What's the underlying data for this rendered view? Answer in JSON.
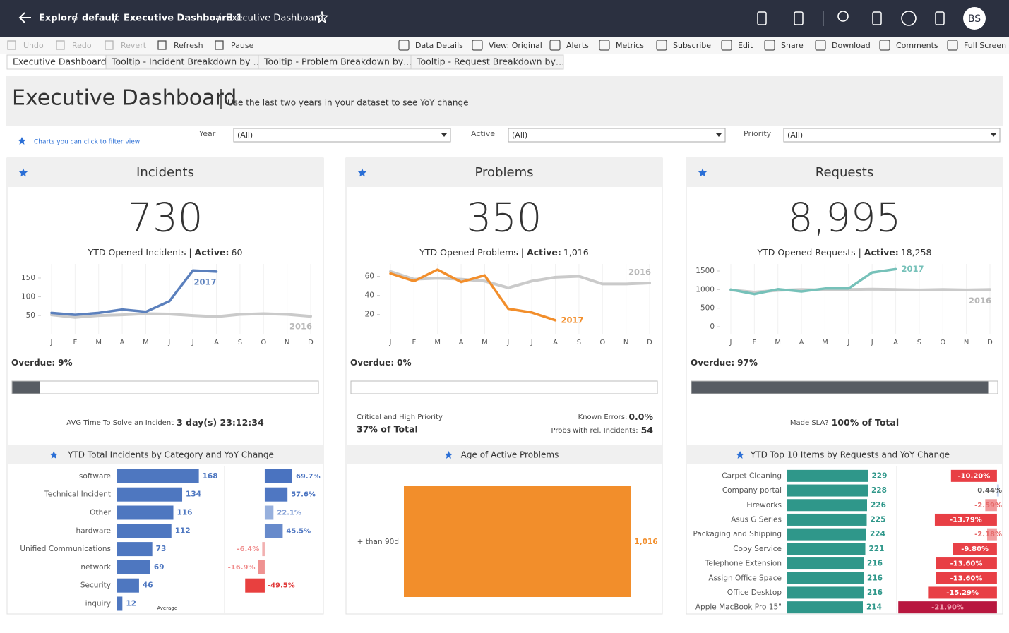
{
  "header": {
    "breadcrumb": [
      "Explore",
      "default",
      "Executive Dashboard 1",
      "Executive Dashboard"
    ],
    "avatar": "BS"
  },
  "toolbar": {
    "left": [
      "Undo",
      "Redo",
      "Revert",
      "Refresh",
      "Pause"
    ],
    "right": [
      "Data Details",
      "View: Original",
      "Alerts",
      "Metrics",
      "Subscribe",
      "Edit",
      "Share",
      "Download",
      "Comments",
      "Full Screen"
    ]
  },
  "tabs": [
    "Executive Dashboard",
    "Tooltip - Incident Breakdown by …",
    "Tooltip - Problem Breakdown by…",
    "Tooltip - Request Breakdown by…"
  ],
  "dashboard": {
    "title": "Executive Dashboard",
    "subtitle": "Use the last two years in your dataset to see YoY change",
    "hint": "Charts you can click to filter view",
    "filters": [
      {
        "label": "Year",
        "value": "(All)"
      },
      {
        "label": "Active",
        "value": "(All)"
      },
      {
        "label": "Priority",
        "value": "(All)"
      }
    ]
  },
  "panels": [
    {
      "title": "Incidents",
      "kpi": "730",
      "kpi_label": "YTD Opened Incidents |",
      "active_label": "Active:",
      "active_value": "60",
      "overdue": {
        "label": "Overdue:",
        "value": 9,
        "value_label": "9%"
      },
      "stats": [
        {
          "label": "AVG Time To Solve an Incident",
          "value": "3 day(s) 23:12:34"
        }
      ]
    },
    {
      "title": "Problems",
      "kpi": "350",
      "kpi_label": "YTD Opened Problems |",
      "active_label": "Active:",
      "active_value": "1,016",
      "overdue": {
        "label": "Overdue:",
        "value": 0,
        "value_label": "0%"
      },
      "stats": [
        {
          "label": "Critical and High Priority",
          "value": "37% of Total"
        },
        {
          "label": "Known Errors:",
          "value": "0.0%"
        },
        {
          "label": "Probs with rel. Incidents:",
          "value": "54"
        }
      ]
    },
    {
      "title": "Requests",
      "kpi": "8,995",
      "kpi_label": "YTD Opened Requests |",
      "active_label": "Active:",
      "active_value": "18,258",
      "overdue": {
        "label": "Overdue:",
        "value": 97,
        "value_label": "97%"
      },
      "stats": [
        {
          "label": "Made SLA?",
          "value": "100% of Total"
        }
      ]
    }
  ],
  "chart_data": [
    {
      "type": "line",
      "categories": [
        "J",
        "F",
        "M",
        "A",
        "M",
        "J",
        "J",
        "A",
        "S",
        "O",
        "N",
        "D"
      ],
      "series": [
        {
          "name": "2017",
          "color": "#5b80bd",
          "values": [
            57,
            52,
            57,
            66,
            60,
            88,
            170,
            167,
            null,
            null,
            null,
            null
          ]
        },
        {
          "name": "2016",
          "color": "#cacaca",
          "values": [
            52,
            45,
            50,
            52,
            55,
            54,
            50,
            47,
            53,
            55,
            53,
            48
          ]
        }
      ],
      "ylim": [
        7,
        180
      ],
      "yticks": [
        50,
        100,
        150
      ]
    },
    {
      "type": "line",
      "categories": [
        "J",
        "F",
        "M",
        "A",
        "M",
        "J",
        "J",
        "A",
        "S",
        "O",
        "N",
        "D"
      ],
      "series": [
        {
          "name": "2017",
          "color": "#f28e2b",
          "values": [
            63,
            55,
            67,
            54,
            61,
            26,
            22,
            14,
            null,
            null,
            null,
            null
          ]
        },
        {
          "name": "2016",
          "color": "#cacaca",
          "values": [
            65,
            57,
            58,
            57,
            55,
            48,
            55,
            59,
            60,
            52,
            52,
            53
          ]
        }
      ],
      "ylim": [
        2,
        70
      ],
      "yticks": [
        20,
        40,
        60
      ]
    },
    {
      "type": "line",
      "categories": [
        "J",
        "F",
        "M",
        "A",
        "M",
        "J",
        "J",
        "A",
        "S",
        "O",
        "N",
        "D"
      ],
      "series": [
        {
          "name": "2017",
          "color": "#76c1b9",
          "values": [
            1000,
            880,
            1010,
            950,
            1030,
            1030,
            1460,
            1550,
            null,
            null,
            null,
            null
          ]
        },
        {
          "name": "2016",
          "color": "#cacaca",
          "values": [
            990,
            930,
            980,
            1000,
            990,
            1000,
            1010,
            1000,
            990,
            1000,
            990,
            1000
          ]
        }
      ],
      "ylim": [
        -133,
        1614
      ],
      "yticks": [
        0,
        500,
        1000,
        1500
      ]
    },
    {
      "type": "bar",
      "title": "YTD Total Incidents by Category and YoY Change",
      "categories": [
        "software",
        "Technical Incident",
        "Other",
        "hardware",
        "Unified Communications",
        "network",
        "Security",
        "inquiry"
      ],
      "series": [
        {
          "color": "#4e77c0",
          "values": [
            168,
            134,
            116,
            112,
            73,
            69,
            46,
            12
          ],
          "xlim": [
            0,
            206
          ]
        },
        {
          "values": [
            69.7,
            57.6,
            22.1,
            45.5,
            -6.4,
            -16.9,
            -49.5,
            null
          ],
          "value_labels": [
            "69.7%",
            "57.6%",
            "22.1%",
            "45.5%",
            "-6.4%",
            "-16.9%",
            "-49.5%",
            null
          ],
          "xlim": [
            -116,
            143
          ]
        }
      ],
      "reference_label": "Average"
    },
    {
      "type": "bar",
      "title": "Age of Active Problems",
      "categories": [
        "+ than 90d"
      ],
      "series": [
        {
          "color": "#f28e2b",
          "values": [
            1016
          ],
          "value_labels": [
            "1,016"
          ],
          "xlim": [
            0,
            1100
          ]
        }
      ]
    },
    {
      "type": "bar",
      "title": "YTD Top 10 Items by Requests and YoY Change",
      "categories": [
        "Carpet Cleaning",
        "Company portal",
        "Fireworks",
        "Asus G Series",
        "Packaging and Shipping",
        "Copy Service",
        "Telephone Extension",
        "Assign Office Space",
        "Office Desktop",
        "Apple MacBook Pro 15\""
      ],
      "series": [
        {
          "color": "#2f978a",
          "values": [
            229,
            228,
            226,
            225,
            224,
            221,
            216,
            216,
            216,
            214
          ],
          "xlim": [
            0,
            290
          ]
        },
        {
          "values": [
            -10.2,
            0.44,
            -2.59,
            -13.79,
            -2.18,
            -9.8,
            -13.6,
            -13.6,
            -15.29,
            -21.9
          ],
          "value_labels": [
            "-10.20%",
            "0.44%",
            "-2.59%",
            "-13.79%",
            "-2.18%",
            "-9.80%",
            "-13.60%",
            "-13.60%",
            "-15.29%",
            "-21.90%"
          ],
          "xlim": [
            -23.5,
            0.8
          ]
        }
      ]
    }
  ]
}
